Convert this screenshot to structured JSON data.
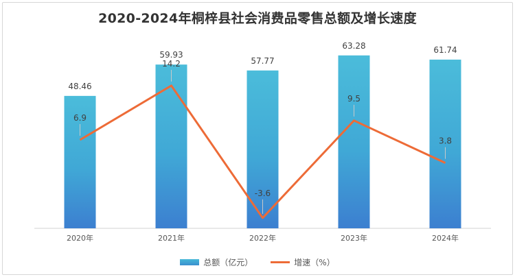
{
  "chart_data": {
    "type": "bar",
    "title": "2020-2024年桐梓县社会消费品零售总额及增长速度",
    "categories": [
      "2020年",
      "2021年",
      "2022年",
      "2023年",
      "2024年"
    ],
    "series": [
      {
        "name": "总额（亿元）",
        "type": "bar",
        "values": [
          48.46,
          59.93,
          57.77,
          63.28,
          61.74
        ],
        "color": "#45b5d6"
      },
      {
        "name": "增速（%）",
        "type": "line",
        "values": [
          6.9,
          14.2,
          -3.6,
          9.5,
          3.8
        ],
        "color": "#ed6b37"
      }
    ],
    "bar_axis_range": [
      0,
      68
    ],
    "line_axis_range": [
      -5,
      20
    ],
    "grid": false,
    "legend": "bottom"
  }
}
